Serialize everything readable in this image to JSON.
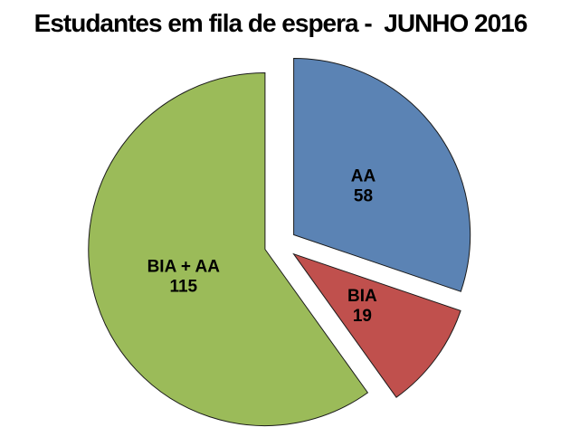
{
  "chart_data": {
    "type": "pie",
    "title": "Estudantes em fila de espera -  JUNHO 2016",
    "slices": [
      {
        "label": "AA",
        "value": 58,
        "color": "#5B83B4"
      },
      {
        "label": "BIA",
        "value": 19,
        "color": "#C0504D"
      },
      {
        "label": "BIA + AA",
        "value": 115,
        "color": "#9BBB59"
      }
    ],
    "total": 192,
    "start_angle_deg": 0,
    "direction": "clockwise",
    "exploded": true,
    "legend": "none",
    "data_labels": "category name and value inside slices",
    "outline_color": "#1a1a1a",
    "label_color": "#000000",
    "background": "#FFFFFF"
  }
}
